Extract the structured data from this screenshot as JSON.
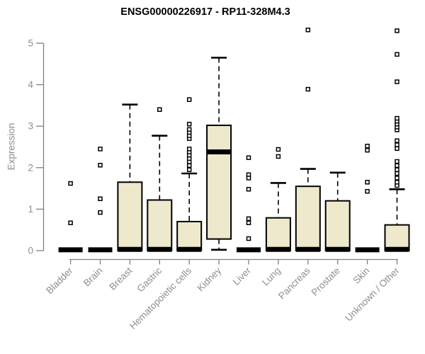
{
  "title": "ENSG00000226917 - RP11-328M4.3",
  "ylabel": "Expression",
  "colors": {
    "background": "#ffffff",
    "box_fill": "#EEE9CC",
    "box_stroke": "#000000",
    "median": "#000000",
    "whisker": "#000000",
    "outlier_stroke": "#000000",
    "outlier_fill": "#ffffff",
    "axis_line": "#808080",
    "axis_text": "#8e8e8e",
    "title_text": "#000000"
  },
  "chart_data": {
    "type": "boxplot",
    "title": "ENSG00000226917 - RP11-328M4.3",
    "xlabel": "",
    "ylabel": "Expression",
    "ylim": [
      0,
      5.4
    ],
    "yticks": [
      0,
      1,
      2,
      3,
      4,
      5
    ],
    "grid": false,
    "legend": "none",
    "categories": [
      "Bladder",
      "Brain",
      "Breast",
      "Gastric",
      "Hematopoietic cells",
      "Kidney",
      "Liver",
      "Lung",
      "Pancreas",
      "Prostate",
      "Skin",
      "Unknown / Other"
    ],
    "series": [
      {
        "name": "Bladder",
        "q1": 0,
        "median": 0.02,
        "q3": 0.03,
        "whisker_low": 0,
        "whisker_high": 0.03,
        "outliers": [
          1.62,
          0.67
        ]
      },
      {
        "name": "Brain",
        "q1": 0,
        "median": 0.02,
        "q3": 0.03,
        "whisker_low": 0,
        "whisker_high": 0.03,
        "outliers": [
          2.45,
          2.06,
          1.25,
          0.92
        ]
      },
      {
        "name": "Breast",
        "q1": 0,
        "median": 0.03,
        "q3": 1.65,
        "whisker_low": 0,
        "whisker_high": 3.52,
        "outliers": []
      },
      {
        "name": "Gastric",
        "q1": 0,
        "median": 0.03,
        "q3": 1.22,
        "whisker_low": 0,
        "whisker_high": 2.77,
        "outliers": [
          3.4
        ]
      },
      {
        "name": "Hematopoietic cells",
        "q1": 0,
        "median": 0.03,
        "q3": 0.7,
        "whisker_low": 0,
        "whisker_high": 1.86,
        "outliers": [
          1.95,
          2.05,
          2.14,
          2.22,
          2.3,
          2.38,
          2.45,
          2.7,
          2.77,
          2.85,
          2.92,
          3.05,
          3.64
        ]
      },
      {
        "name": "Kidney",
        "q1": 0.28,
        "median": 2.38,
        "q3": 3.02,
        "whisker_low": 0.02,
        "whisker_high": 4.65,
        "outliers": []
      },
      {
        "name": "Liver",
        "q1": 0,
        "median": 0.02,
        "q3": 0.03,
        "whisker_low": 0,
        "whisker_high": 0.03,
        "outliers": [
          2.24,
          1.83,
          1.75,
          1.48,
          0.77,
          0.67,
          0.29
        ]
      },
      {
        "name": "Lung",
        "q1": 0,
        "median": 0.03,
        "q3": 0.79,
        "whisker_low": 0,
        "whisker_high": 1.63,
        "outliers": [
          2.44,
          2.27
        ]
      },
      {
        "name": "Pancreas",
        "q1": 0,
        "median": 0.03,
        "q3": 1.55,
        "whisker_low": 0,
        "whisker_high": 1.97,
        "outliers": [
          3.89,
          5.32
        ]
      },
      {
        "name": "Prostate",
        "q1": 0,
        "median": 0.03,
        "q3": 1.2,
        "whisker_low": 0,
        "whisker_high": 1.88,
        "outliers": []
      },
      {
        "name": "Skin",
        "q1": 0,
        "median": 0.02,
        "q3": 0.03,
        "whisker_low": 0,
        "whisker_high": 0.03,
        "outliers": [
          2.52,
          2.42,
          1.65,
          1.43
        ]
      },
      {
        "name": "Unknown / Other",
        "q1": 0,
        "median": 0.03,
        "q3": 0.62,
        "whisker_low": 0,
        "whisker_high": 1.48,
        "outliers": [
          1.57,
          1.65,
          1.75,
          1.86,
          1.95,
          2.05,
          2.15,
          2.46,
          2.55,
          2.65,
          2.91,
          2.98,
          3.05,
          3.12,
          3.19,
          4.07,
          4.73,
          5.3
        ]
      }
    ]
  }
}
